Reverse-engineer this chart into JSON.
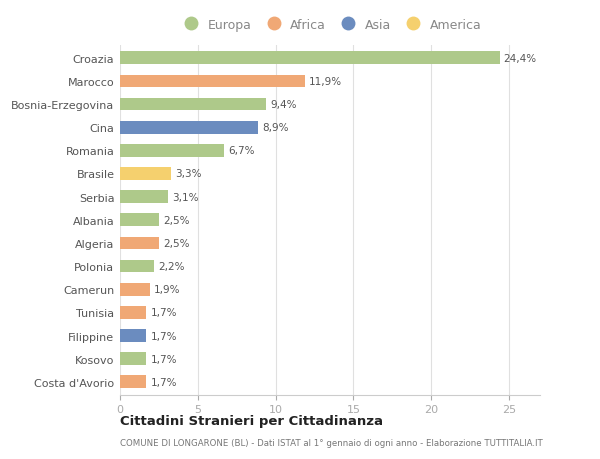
{
  "categories": [
    "Costa d'Avorio",
    "Kosovo",
    "Filippine",
    "Tunisia",
    "Camerun",
    "Polonia",
    "Algeria",
    "Albania",
    "Serbia",
    "Brasile",
    "Romania",
    "Cina",
    "Bosnia-Erzegovina",
    "Marocco",
    "Croazia"
  ],
  "values": [
    1.7,
    1.7,
    1.7,
    1.7,
    1.9,
    2.2,
    2.5,
    2.5,
    3.1,
    3.3,
    6.7,
    8.9,
    9.4,
    11.9,
    24.4
  ],
  "labels": [
    "1,7%",
    "1,7%",
    "1,7%",
    "1,7%",
    "1,9%",
    "2,2%",
    "2,5%",
    "2,5%",
    "3,1%",
    "3,3%",
    "6,7%",
    "8,9%",
    "9,4%",
    "11,9%",
    "24,4%"
  ],
  "continents": [
    "Africa",
    "Europa",
    "Asia",
    "Africa",
    "Africa",
    "Europa",
    "Africa",
    "Europa",
    "Europa",
    "America",
    "Europa",
    "Asia",
    "Europa",
    "Africa",
    "Europa"
  ],
  "colors": {
    "Europa": "#aec98a",
    "Africa": "#f0a875",
    "Asia": "#6b8cbf",
    "America": "#f5d06e"
  },
  "legend_labels": [
    "Europa",
    "Africa",
    "Asia",
    "America"
  ],
  "title": "Cittadini Stranieri per Cittadinanza",
  "subtitle": "COMUNE DI LONGARONE (BL) - Dati ISTAT al 1° gennaio di ogni anno - Elaborazione TUTTITALIA.IT",
  "xlim": [
    0,
    27
  ],
  "background_color": "#ffffff",
  "bar_height": 0.55
}
